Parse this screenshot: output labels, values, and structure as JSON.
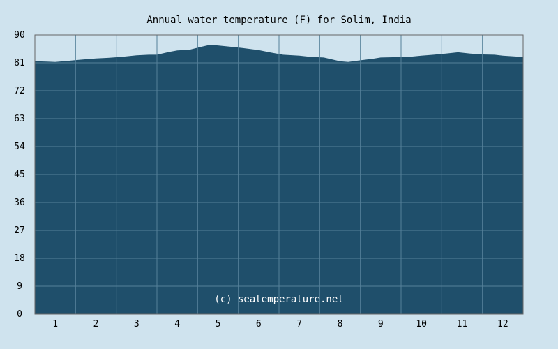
{
  "chart_data": {
    "type": "area",
    "title": "Annual water temperature (F) for Solim, India",
    "xlabel": "",
    "ylabel": "",
    "ylim": [
      0,
      90
    ],
    "xlim": [
      0.5,
      12.5
    ],
    "y_ticks": [
      "0",
      "9",
      "18",
      "27",
      "36",
      "45",
      "54",
      "63",
      "72",
      "81",
      "90"
    ],
    "x_ticks": [
      "1",
      "2",
      "3",
      "4",
      "5",
      "6",
      "7",
      "8",
      "9",
      "10",
      "11",
      "12"
    ],
    "grid": true,
    "legend": "none",
    "series": [
      {
        "x": [
          0.5,
          0.8,
          1.0,
          1.3,
          1.6,
          2.0,
          2.3,
          2.6,
          3.0,
          3.3,
          3.5,
          3.8,
          4.0,
          4.3,
          4.6,
          4.8,
          5.0,
          5.3,
          5.6,
          6.0,
          6.3,
          6.6,
          7.0,
          7.3,
          7.6,
          8.0,
          8.2,
          8.5,
          8.8,
          9.0,
          9.3,
          9.6,
          10.0,
          10.3,
          10.6,
          10.9,
          11.2,
          11.5,
          11.8,
          12.0,
          12.5
        ],
        "y": [
          81.5,
          81.4,
          81.3,
          81.6,
          82.0,
          82.4,
          82.6,
          82.9,
          83.4,
          83.6,
          83.6,
          84.5,
          85.0,
          85.2,
          86.2,
          86.8,
          86.6,
          86.2,
          85.8,
          85.1,
          84.3,
          83.6,
          83.3,
          82.9,
          82.7,
          81.5,
          81.3,
          81.8,
          82.3,
          82.7,
          82.8,
          82.8,
          83.3,
          83.6,
          84.0,
          84.4,
          84.0,
          83.7,
          83.6,
          83.3,
          82.9
        ]
      }
    ],
    "colors": {
      "background": "#cfe3ee",
      "area_fill": "#1f4f6b",
      "grid": "#56819a",
      "axis": "#666666"
    },
    "annotation": "(c) seatemperature.net"
  }
}
